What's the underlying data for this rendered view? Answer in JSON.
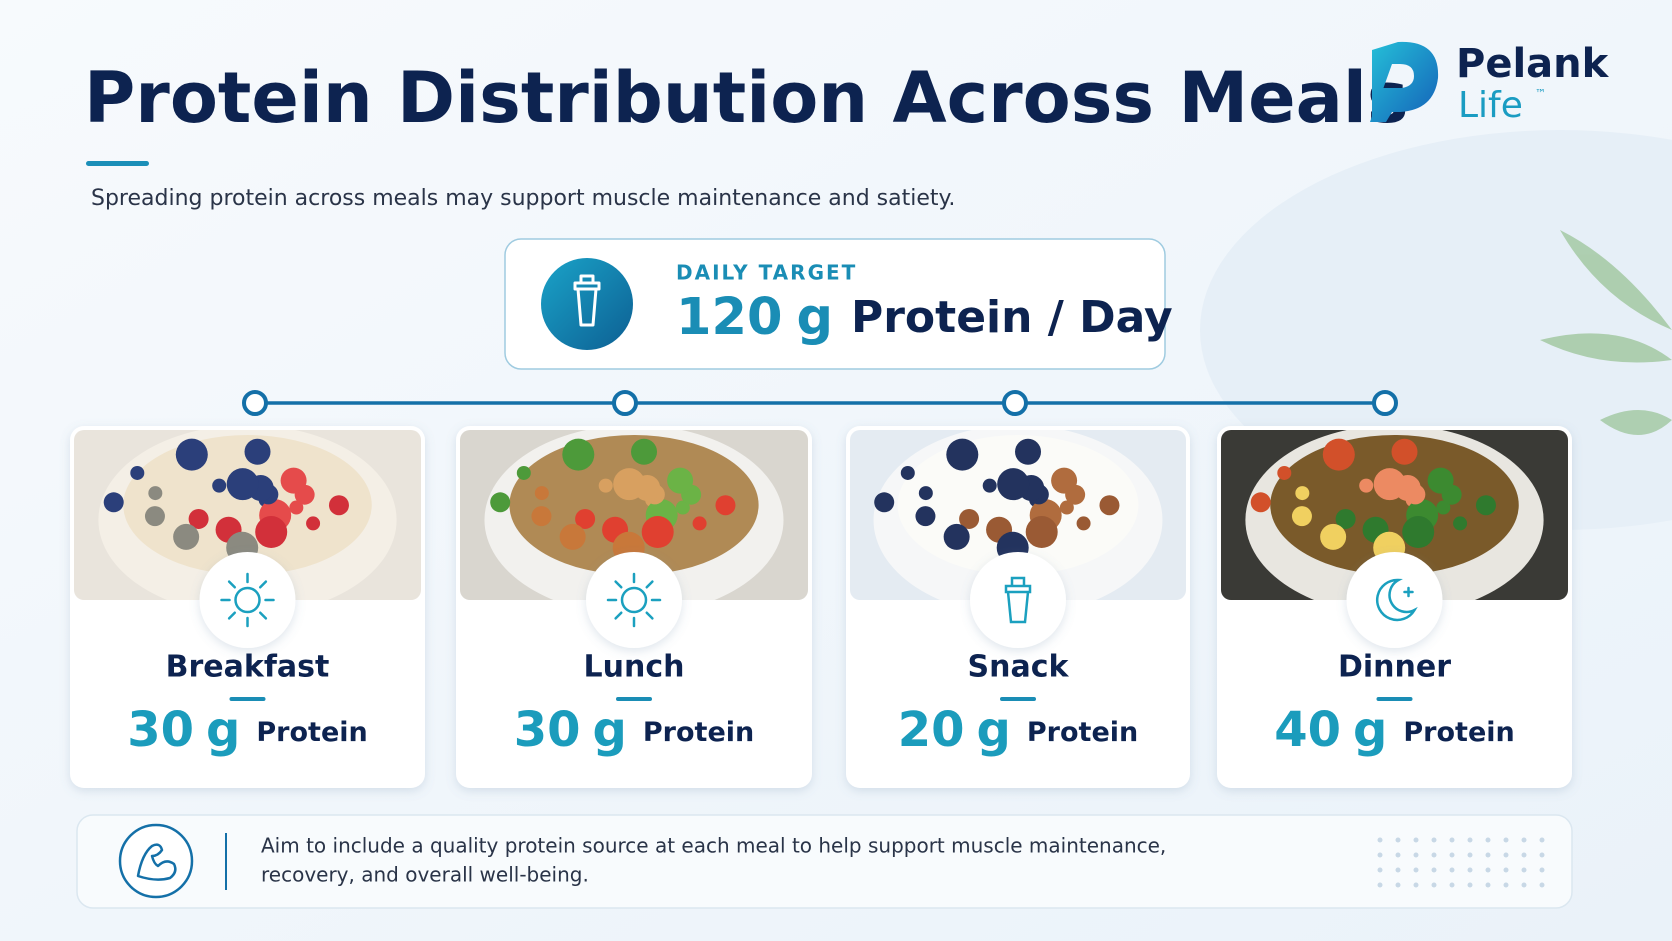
{
  "header": {
    "title": "Protein Distribution Across Meals",
    "subtitle": "Spreading protein across meals may support muscle maintenance and satiety."
  },
  "logo": {
    "name": "Pelank",
    "sub": "Life",
    "mark": "™"
  },
  "target": {
    "label": "DAILY TARGET",
    "amount": 120,
    "unit": "g",
    "text": "Protein / Day"
  },
  "meals": [
    {
      "name": "Breakfast",
      "amount": 30,
      "unit": "g",
      "label": "Protein"
    },
    {
      "name": "Lunch",
      "amount": 30,
      "unit": "g",
      "label": "Protein"
    },
    {
      "name": "Snack",
      "amount": 20,
      "unit": "g",
      "label": "Protein"
    },
    {
      "name": "Dinner",
      "amount": 40,
      "unit": "g",
      "label": "Protein"
    }
  ],
  "note": {
    "lines": [
      "Aim to include a quality protein source at each meal to help support muscle maintenance,",
      "recovery, and overall well-being."
    ]
  }
}
